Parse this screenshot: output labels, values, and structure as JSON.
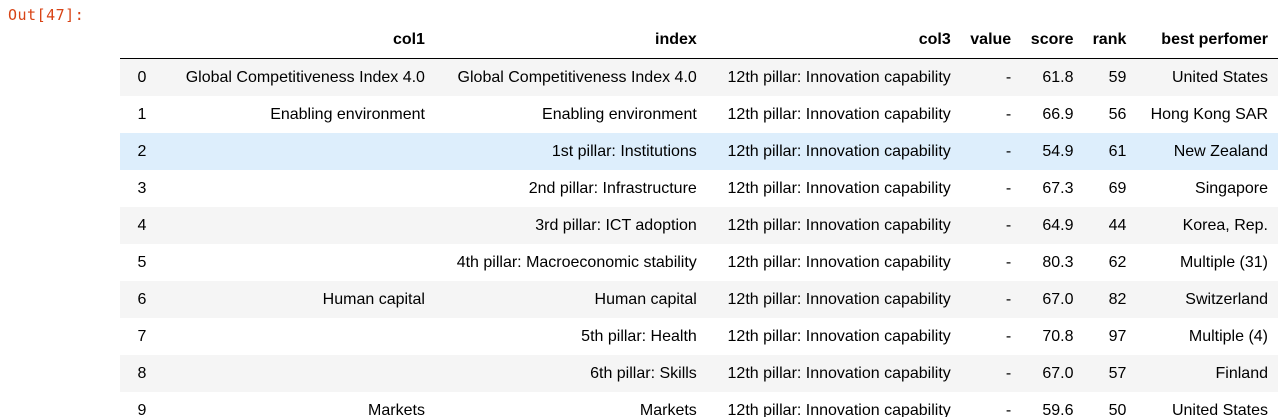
{
  "prompt": "Out[47]:",
  "columns": [
    "",
    "col1",
    "index",
    "col3",
    "value",
    "score",
    "rank",
    "best perfomer"
  ],
  "rows": [
    {
      "idx": "0",
      "col1": "Global Competitiveness Index 4.0",
      "index": "Global Competitiveness Index 4.0",
      "col3": "12th pillar: Innovation capability",
      "value": "-",
      "score": "61.8",
      "rank": "59",
      "best": "United States"
    },
    {
      "idx": "1",
      "col1": "Enabling environment",
      "index": "Enabling environment",
      "col3": "12th pillar: Innovation capability",
      "value": "-",
      "score": "66.9",
      "rank": "56",
      "best": "Hong Kong SAR"
    },
    {
      "idx": "2",
      "col1": "",
      "index": "1st pillar: Institutions",
      "col3": "12th pillar: Innovation capability",
      "value": "-",
      "score": "54.9",
      "rank": "61",
      "best": "New Zealand"
    },
    {
      "idx": "3",
      "col1": "",
      "index": "2nd pillar: Infrastructure",
      "col3": "12th pillar: Innovation capability",
      "value": "-",
      "score": "67.3",
      "rank": "69",
      "best": "Singapore"
    },
    {
      "idx": "4",
      "col1": "",
      "index": "3rd pillar: ICT adoption",
      "col3": "12th pillar: Innovation capability",
      "value": "-",
      "score": "64.9",
      "rank": "44",
      "best": "Korea, Rep."
    },
    {
      "idx": "5",
      "col1": "",
      "index": "4th pillar: Macroeconomic stability",
      "col3": "12th pillar: Innovation capability",
      "value": "-",
      "score": "80.3",
      "rank": "62",
      "best": "Multiple (31)"
    },
    {
      "idx": "6",
      "col1": "Human capital",
      "index": "Human capital",
      "col3": "12th pillar: Innovation capability",
      "value": "-",
      "score": "67.0",
      "rank": "82",
      "best": "Switzerland"
    },
    {
      "idx": "7",
      "col1": "",
      "index": "5th pillar: Health",
      "col3": "12th pillar: Innovation capability",
      "value": "-",
      "score": "70.8",
      "rank": "97",
      "best": "Multiple (4)"
    },
    {
      "idx": "8",
      "col1": "",
      "index": "6th pillar: Skills",
      "col3": "12th pillar: Innovation capability",
      "value": "-",
      "score": "67.0",
      "rank": "57",
      "best": "Finland"
    },
    {
      "idx": "9",
      "col1": "Markets",
      "index": "Markets",
      "col3": "12th pillar: Innovation capability",
      "value": "-",
      "score": "59.6",
      "rank": "50",
      "best": "United States"
    }
  ],
  "colors": {
    "prompt": "#d84315",
    "row_hover": "#ddeefc",
    "row_stripe": "#f5f5f5"
  }
}
